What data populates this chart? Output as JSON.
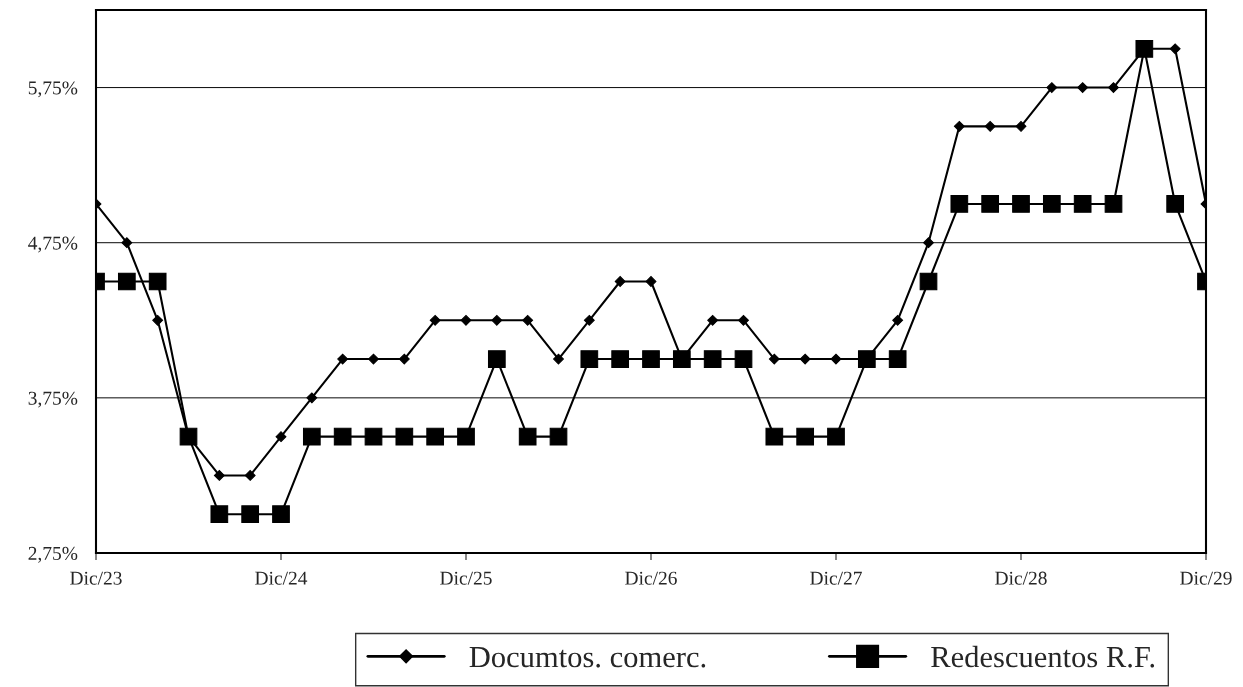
{
  "chart_data": {
    "type": "line",
    "categories": [
      "Dic/23",
      null,
      null,
      null,
      null,
      null,
      "Dic/24",
      null,
      null,
      null,
      null,
      null,
      "Dic/25",
      null,
      null,
      null,
      null,
      null,
      "Dic/26",
      null,
      null,
      null,
      null,
      null,
      "Dic/27",
      null,
      null,
      null,
      null,
      null,
      "Dic/28",
      null,
      null,
      null,
      null,
      null,
      "Dic/29"
    ],
    "series": [
      {
        "name": "Documtos. comerc.",
        "color": "#000000",
        "marker": "diamond",
        "values": [
          5.0,
          4.75,
          4.25,
          3.5,
          3.25,
          3.25,
          3.5,
          3.75,
          4.0,
          4.0,
          4.0,
          4.25,
          4.25,
          4.25,
          4.25,
          4.0,
          4.25,
          4.5,
          4.5,
          4.0,
          4.25,
          4.25,
          4.0,
          4.0,
          4.0,
          4.0,
          4.25,
          4.75,
          5.5,
          5.5,
          5.5,
          5.75,
          5.75,
          5.75,
          6.0,
          6.0,
          5.0
        ]
      },
      {
        "name": "Redescuentos R.F.",
        "color": "#000000",
        "marker": "square",
        "values": [
          4.5,
          4.5,
          4.5,
          3.5,
          3.0,
          3.0,
          3.0,
          3.5,
          3.5,
          3.5,
          3.5,
          3.5,
          3.5,
          4.0,
          3.5,
          3.5,
          4.0,
          4.0,
          4.0,
          4.0,
          4.0,
          4.0,
          3.5,
          3.5,
          3.5,
          4.0,
          4.0,
          4.5,
          5.0,
          5.0,
          5.0,
          5.0,
          5.0,
          5.0,
          6.0,
          5.0,
          4.5
        ]
      }
    ],
    "ylim": [
      2.75,
      6.25
    ],
    "yticks": [
      {
        "value": 2.75,
        "label": "2,75%"
      },
      {
        "value": 3.75,
        "label": "3,75%"
      },
      {
        "value": 4.75,
        "label": "4,75%"
      },
      {
        "value": 5.75,
        "label": "5,75%"
      }
    ],
    "grid": "y",
    "legend": "bottom"
  }
}
